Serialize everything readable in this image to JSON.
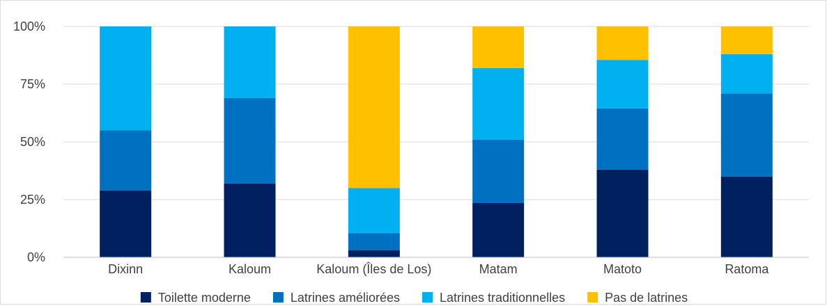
{
  "chart_data": {
    "type": "bar",
    "stacked": true,
    "percent_stacked": true,
    "categories": [
      "Dixinn",
      "Kaloum",
      "Kaloum (Îles de Los)",
      "Matam",
      "Matoto",
      "Ratoma"
    ],
    "series": [
      {
        "name": "Toilette moderne",
        "color": "#002060",
        "values": [
          29,
          32,
          3,
          23.5,
          38,
          35
        ]
      },
      {
        "name": "Latrines améliorées",
        "color": "#0070C0",
        "values": [
          26,
          37,
          7.5,
          27.5,
          26.5,
          36
        ]
      },
      {
        "name": "Latrines traditionnelles",
        "color": "#00B0F0",
        "values": [
          45,
          31,
          19.5,
          31,
          21,
          17
        ]
      },
      {
        "name": "Pas de latrines",
        "color": "#FFC000",
        "values": [
          0,
          0,
          70,
          18,
          14.5,
          12
        ]
      }
    ],
    "y_ticks": [
      "0%",
      "25%",
      "50%",
      "75%",
      "100%"
    ],
    "ylim": [
      0,
      100
    ],
    "grid": true,
    "legend_position": "bottom"
  }
}
